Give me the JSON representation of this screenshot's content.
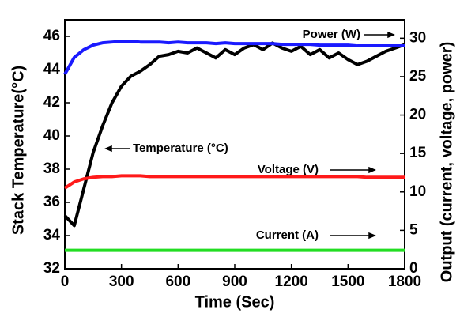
{
  "chart_data": {
    "type": "line",
    "x_label": "Time (Sec)",
    "y_label": "Stack Temperature(°C)",
    "y2_label": "Output (current, voltage, power)",
    "x": [
      0,
      50,
      100,
      150,
      200,
      250,
      300,
      350,
      400,
      450,
      500,
      550,
      600,
      650,
      700,
      750,
      800,
      850,
      900,
      950,
      1000,
      1050,
      1100,
      1150,
      1200,
      1250,
      1300,
      1350,
      1400,
      1450,
      1500,
      1550,
      1600,
      1650,
      1700,
      1750,
      1800
    ],
    "xlim": [
      0,
      1800
    ],
    "xticks": [
      0,
      300,
      600,
      900,
      1200,
      1500,
      1800
    ],
    "ylim": [
      32,
      47
    ],
    "yticks": [
      32,
      34,
      36,
      38,
      40,
      42,
      44,
      46
    ],
    "y2lim": [
      0,
      32.4
    ],
    "y2ticks": [
      0,
      5,
      10,
      15,
      20,
      25,
      30
    ],
    "series": [
      {
        "name": "Temperature (°C)",
        "color": "#000000",
        "axis": "y",
        "values": [
          35.2,
          34.6,
          36.8,
          39.0,
          40.6,
          42.0,
          43.0,
          43.6,
          43.9,
          44.3,
          44.8,
          44.9,
          45.1,
          45.0,
          45.3,
          45.0,
          44.7,
          45.2,
          44.9,
          45.3,
          45.5,
          45.2,
          45.6,
          45.3,
          45.1,
          45.4,
          44.9,
          45.2,
          44.7,
          45.0,
          44.6,
          44.3,
          44.5,
          44.8,
          45.1,
          45.3,
          45.5
        ]
      },
      {
        "name": "Power (W)",
        "color": "#1a1aff",
        "axis": "y2",
        "values": [
          25.3,
          27.5,
          28.5,
          29.1,
          29.4,
          29.5,
          29.6,
          29.6,
          29.5,
          29.5,
          29.5,
          29.4,
          29.5,
          29.4,
          29.4,
          29.4,
          29.3,
          29.4,
          29.3,
          29.3,
          29.3,
          29.3,
          29.3,
          29.2,
          29.2,
          29.2,
          29.2,
          29.1,
          29.1,
          29.1,
          29.1,
          29.0,
          29.0,
          29.0,
          29.0,
          29.0,
          29.0
        ]
      },
      {
        "name": "Voltage (V)",
        "color": "#ff1a1a",
        "axis": "y2",
        "values": [
          10.5,
          11.3,
          11.7,
          11.9,
          12.0,
          12.0,
          12.1,
          12.1,
          12.1,
          12.0,
          12.0,
          12.0,
          12.0,
          12.0,
          12.0,
          12.0,
          12.0,
          12.0,
          12.0,
          12.0,
          12.0,
          12.0,
          12.0,
          12.0,
          12.0,
          12.0,
          12.0,
          12.0,
          12.0,
          12.0,
          12.0,
          12.0,
          11.9,
          11.9,
          11.9,
          11.9,
          11.9
        ]
      },
      {
        "name": "Current (A)",
        "color": "#22dd22",
        "axis": "y2",
        "values": [
          2.4,
          2.4,
          2.4,
          2.4,
          2.4,
          2.4,
          2.4,
          2.4,
          2.4,
          2.4,
          2.4,
          2.4,
          2.4,
          2.4,
          2.4,
          2.4,
          2.4,
          2.4,
          2.4,
          2.4,
          2.4,
          2.4,
          2.4,
          2.4,
          2.4,
          2.4,
          2.4,
          2.4,
          2.4,
          2.4,
          2.4,
          2.4,
          2.4,
          2.4,
          2.4,
          2.4,
          2.4
        ]
      }
    ]
  }
}
